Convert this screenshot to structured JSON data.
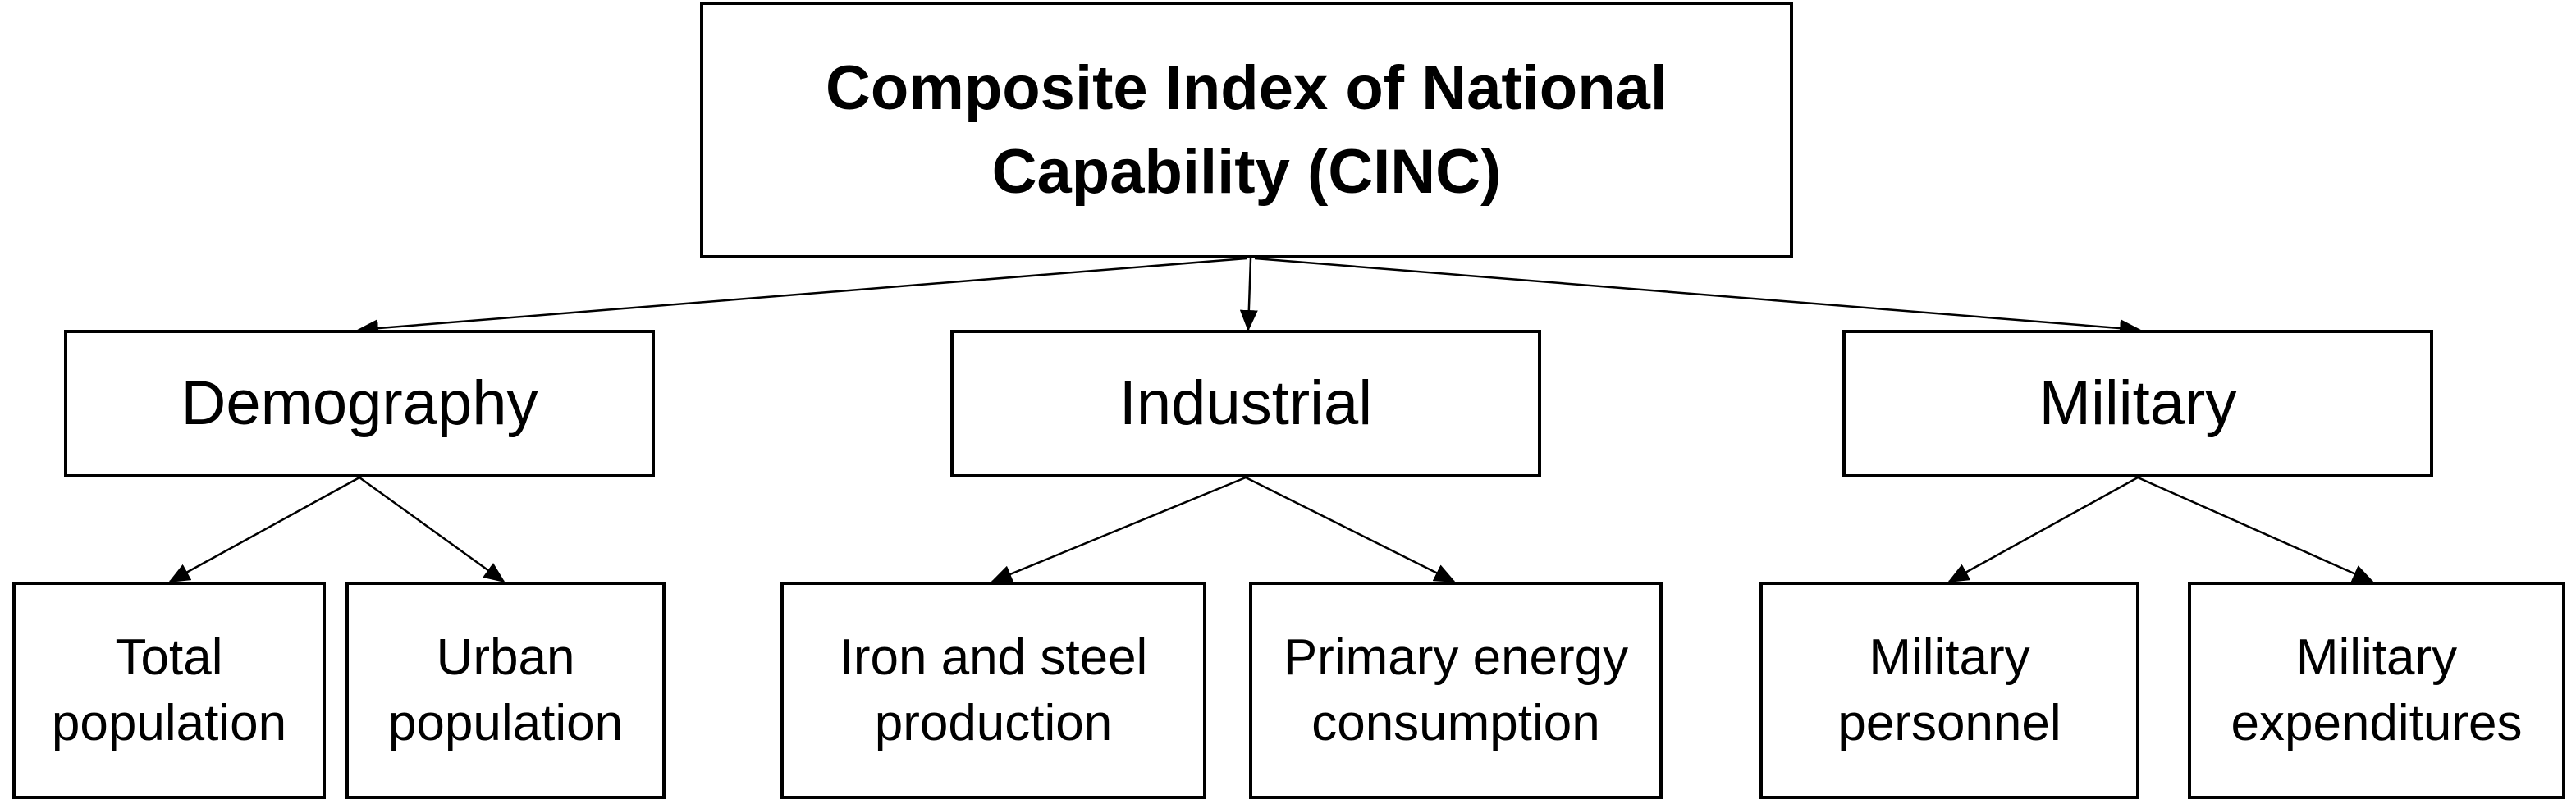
{
  "root": {
    "label": "Composite Index of National Capability (CINC)"
  },
  "categories": [
    {
      "label": "Demography",
      "children": [
        {
          "label": "Total population"
        },
        {
          "label": "Urban population"
        }
      ]
    },
    {
      "label": "Industrial",
      "children": [
        {
          "label": "Iron and steel production"
        },
        {
          "label": "Primary energy consumption"
        }
      ]
    },
    {
      "label": "Military",
      "children": [
        {
          "label": "Military personnel"
        },
        {
          "label": "Military expenditures"
        }
      ]
    }
  ]
}
